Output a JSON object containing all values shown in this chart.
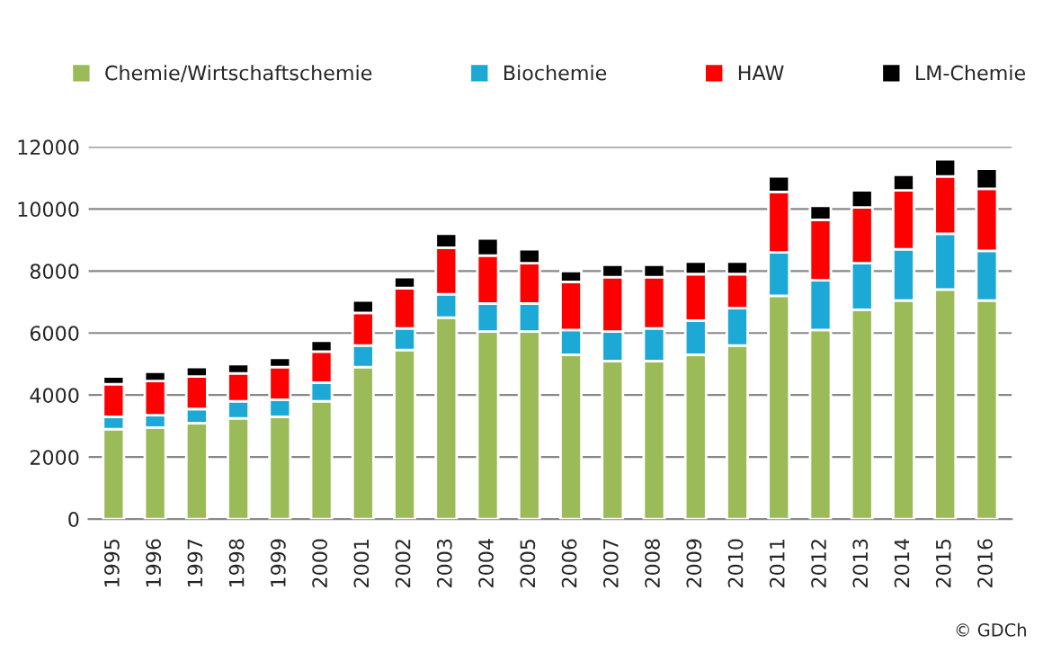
{
  "chart_data": {
    "type": "bar",
    "stacked": true,
    "categories": [
      "1995",
      "1996",
      "1997",
      "1998",
      "1999",
      "2000",
      "2001",
      "2002",
      "2003",
      "2004",
      "2005",
      "2006",
      "2007",
      "2008",
      "2009",
      "2010",
      "2011",
      "2012",
      "2013",
      "2014",
      "2015",
      "2016"
    ],
    "series": [
      {
        "name": "Chemie/Wirtschaftschemie",
        "color": "#9bbb59",
        "values": [
          2900,
          2950,
          3100,
          3250,
          3300,
          3800,
          4900,
          5450,
          6500,
          6050,
          6050,
          5300,
          5100,
          5100,
          5300,
          5600,
          7200,
          6100,
          6750,
          7050,
          7400,
          7050
        ]
      },
      {
        "name": "Biochemie",
        "color": "#1ca9d6",
        "values": [
          400,
          400,
          450,
          550,
          550,
          600,
          700,
          700,
          750,
          900,
          900,
          800,
          950,
          1050,
          1100,
          1200,
          1400,
          1600,
          1500,
          1650,
          1800,
          1600
        ]
      },
      {
        "name": "HAW",
        "color": "#ff0000",
        "values": [
          1050,
          1100,
          1050,
          900,
          1050,
          1000,
          1050,
          1300,
          1500,
          1550,
          1300,
          1550,
          1750,
          1650,
          1500,
          1100,
          1950,
          1950,
          1800,
          1900,
          1850,
          2000
        ]
      },
      {
        "name": "LM-Chemie",
        "color": "#000000",
        "values": [
          250,
          300,
          300,
          300,
          300,
          350,
          400,
          350,
          450,
          550,
          450,
          350,
          400,
          400,
          400,
          400,
          500,
          450,
          550,
          500,
          550,
          650
        ]
      }
    ],
    "ylim": [
      0,
      12000
    ],
    "yticks": [
      0,
      2000,
      4000,
      6000,
      8000,
      10000,
      12000
    ],
    "grid": "y",
    "legend": "top",
    "annotations": [
      "© GDCh"
    ]
  }
}
